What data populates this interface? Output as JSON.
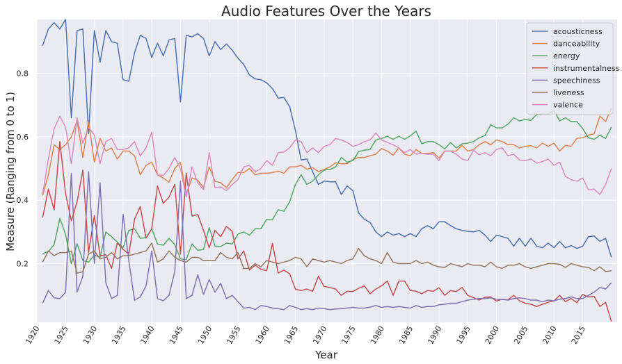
{
  "chart_data": {
    "type": "line",
    "title": "Audio Features Over the Years",
    "xlabel": "Year",
    "ylabel": "Measure (Ranging from 0 to 1)",
    "xlim": [
      1920,
      2021
    ],
    "ylim": [
      0.015,
      0.97
    ],
    "x_ticks": [
      1920,
      1925,
      1930,
      1935,
      1940,
      1945,
      1950,
      1955,
      1960,
      1965,
      1970,
      1975,
      1980,
      1985,
      1990,
      1995,
      2000,
      2005,
      2010,
      2015
    ],
    "y_ticks": [
      0.2,
      0.4,
      0.6,
      0.8
    ],
    "grid": true,
    "legend_position": "top-right",
    "x": [
      1921,
      1922,
      1923,
      1924,
      1925,
      1926,
      1927,
      1928,
      1929,
      1930,
      1931,
      1932,
      1933,
      1934,
      1935,
      1936,
      1937,
      1938,
      1939,
      1940,
      1941,
      1942,
      1943,
      1944,
      1945,
      1946,
      1947,
      1948,
      1949,
      1950,
      1951,
      1952,
      1953,
      1954,
      1955,
      1956,
      1957,
      1958,
      1959,
      1960,
      1961,
      1962,
      1963,
      1964,
      1965,
      1966,
      1967,
      1968,
      1969,
      1970,
      1971,
      1972,
      1973,
      1974,
      1975,
      1976,
      1977,
      1978,
      1979,
      1980,
      1981,
      1982,
      1983,
      1984,
      1985,
      1986,
      1987,
      1988,
      1989,
      1990,
      1991,
      1992,
      1993,
      1994,
      1995,
      1996,
      1997,
      1998,
      1999,
      2000,
      2001,
      2002,
      2003,
      2004,
      2005,
      2006,
      2007,
      2008,
      2009,
      2010,
      2011,
      2012,
      2013,
      2014,
      2015,
      2016,
      2017,
      2018,
      2019,
      2020
    ],
    "series": [
      {
        "name": "acousticness",
        "color": "#4c72b0",
        "values": [
          0.887,
          0.94,
          0.96,
          0.94,
          0.97,
          0.66,
          0.935,
          0.94,
          0.61,
          0.935,
          0.835,
          0.935,
          0.9,
          0.895,
          0.78,
          0.775,
          0.865,
          0.92,
          0.91,
          0.85,
          0.895,
          0.855,
          0.905,
          0.91,
          0.71,
          0.92,
          0.915,
          0.925,
          0.91,
          0.855,
          0.9,
          0.875,
          0.893,
          0.873,
          0.848,
          0.828,
          0.795,
          0.782,
          0.78,
          0.77,
          0.752,
          0.722,
          0.724,
          0.695,
          0.62,
          0.527,
          0.53,
          0.49,
          0.45,
          0.46,
          0.458,
          0.458,
          0.418,
          0.445,
          0.43,
          0.36,
          0.34,
          0.33,
          0.3,
          0.285,
          0.3,
          0.29,
          0.295,
          0.285,
          0.295,
          0.285,
          0.31,
          0.32,
          0.31,
          0.332,
          0.332,
          0.32,
          0.31,
          0.305,
          0.302,
          0.3,
          0.305,
          0.29,
          0.27,
          0.29,
          0.285,
          0.28,
          0.255,
          0.28,
          0.255,
          0.28,
          0.255,
          0.25,
          0.265,
          0.25,
          0.27,
          0.25,
          0.257,
          0.248,
          0.255,
          0.285,
          0.287,
          0.27,
          0.28,
          0.22
        ]
      },
      {
        "name": "danceability",
        "color": "#dd8452",
        "values": [
          0.415,
          0.48,
          0.575,
          0.56,
          0.575,
          0.6,
          0.65,
          0.535,
          0.65,
          0.52,
          0.595,
          0.555,
          0.565,
          0.53,
          0.555,
          0.555,
          0.54,
          0.48,
          0.51,
          0.52,
          0.48,
          0.47,
          0.457,
          0.5,
          0.52,
          0.42,
          0.47,
          0.463,
          0.44,
          0.505,
          0.46,
          0.455,
          0.44,
          0.465,
          0.488,
          0.487,
          0.5,
          0.48,
          0.485,
          0.485,
          0.487,
          0.492,
          0.485,
          0.505,
          0.505,
          0.51,
          0.498,
          0.503,
          0.49,
          0.497,
          0.505,
          0.518,
          0.515,
          0.515,
          0.528,
          0.535,
          0.535,
          0.54,
          0.545,
          0.563,
          0.555,
          0.542,
          0.565,
          0.545,
          0.54,
          0.56,
          0.548,
          0.548,
          0.55,
          0.533,
          0.555,
          0.555,
          0.555,
          0.573,
          0.555,
          0.56,
          0.575,
          0.585,
          0.575,
          0.59,
          0.585,
          0.575,
          0.575,
          0.565,
          0.57,
          0.572,
          0.565,
          0.58,
          0.57,
          0.58,
          0.555,
          0.573,
          0.57,
          0.595,
          0.597,
          0.605,
          0.61,
          0.665,
          0.648,
          0.69
        ]
      },
      {
        "name": "energy",
        "color": "#55a868",
        "values": [
          0.232,
          0.238,
          0.26,
          0.343,
          0.292,
          0.2,
          0.263,
          0.21,
          0.205,
          0.227,
          0.22,
          0.3,
          0.285,
          0.268,
          0.25,
          0.305,
          0.31,
          0.28,
          0.282,
          0.31,
          0.262,
          0.258,
          0.28,
          0.26,
          0.215,
          0.213,
          0.262,
          0.242,
          0.245,
          0.313,
          0.256,
          0.254,
          0.265,
          0.262,
          0.293,
          0.3,
          0.29,
          0.31,
          0.31,
          0.34,
          0.338,
          0.37,
          0.365,
          0.395,
          0.45,
          0.48,
          0.45,
          0.46,
          0.48,
          0.495,
          0.497,
          0.505,
          0.535,
          0.52,
          0.525,
          0.553,
          0.558,
          0.56,
          0.59,
          0.595,
          0.602,
          0.592,
          0.602,
          0.592,
          0.603,
          0.618,
          0.578,
          0.585,
          0.585,
          0.575,
          0.562,
          0.582,
          0.565,
          0.578,
          0.58,
          0.585,
          0.597,
          0.604,
          0.638,
          0.628,
          0.628,
          0.64,
          0.66,
          0.65,
          0.655,
          0.652,
          0.67,
          0.672,
          0.672,
          0.683,
          0.65,
          0.66,
          0.648,
          0.648,
          0.626,
          0.597,
          0.592,
          0.605,
          0.595,
          0.63
        ]
      },
      {
        "name": "instrumentalness",
        "color": "#c44e52",
        "values": [
          0.345,
          0.435,
          0.37,
          0.585,
          0.42,
          0.335,
          0.395,
          0.495,
          0.235,
          0.352,
          0.225,
          0.228,
          0.185,
          0.265,
          0.245,
          0.23,
          0.34,
          0.38,
          0.28,
          0.31,
          0.445,
          0.39,
          0.41,
          0.45,
          0.23,
          0.485,
          0.35,
          0.355,
          0.305,
          0.25,
          0.305,
          0.285,
          0.317,
          0.302,
          0.215,
          0.24,
          0.18,
          0.195,
          0.182,
          0.178,
          0.264,
          0.17,
          0.18,
          0.168,
          0.12,
          0.115,
          0.12,
          0.113,
          0.16,
          0.128,
          0.125,
          0.12,
          0.1,
          0.113,
          0.112,
          0.122,
          0.13,
          0.105,
          0.12,
          0.13,
          0.145,
          0.1,
          0.145,
          0.145,
          0.115,
          0.113,
          0.105,
          0.115,
          0.113,
          0.124,
          0.1,
          0.115,
          0.112,
          0.125,
          0.1,
          0.093,
          0.085,
          0.094,
          0.095,
          0.082,
          0.088,
          0.086,
          0.1,
          0.083,
          0.075,
          0.072,
          0.065,
          0.072,
          0.078,
          0.083,
          0.1,
          0.08,
          0.09,
          0.077,
          0.103,
          0.095,
          0.097,
          0.065,
          0.078,
          0.018
        ]
      },
      {
        "name": "speechiness",
        "color": "#8172b3",
        "values": [
          0.075,
          0.115,
          0.092,
          0.09,
          0.11,
          0.485,
          0.11,
          0.16,
          0.49,
          0.2,
          0.455,
          0.14,
          0.09,
          0.1,
          0.355,
          0.21,
          0.085,
          0.095,
          0.13,
          0.24,
          0.09,
          0.083,
          0.1,
          0.175,
          0.46,
          0.09,
          0.1,
          0.165,
          0.103,
          0.15,
          0.11,
          0.138,
          0.09,
          0.1,
          0.08,
          0.06,
          0.062,
          0.055,
          0.068,
          0.065,
          0.06,
          0.058,
          0.055,
          0.068,
          0.062,
          0.055,
          0.058,
          0.055,
          0.06,
          0.058,
          0.055,
          0.057,
          0.058,
          0.06,
          0.062,
          0.06,
          0.06,
          0.063,
          0.068,
          0.062,
          0.065,
          0.062,
          0.065,
          0.062,
          0.06,
          0.068,
          0.062,
          0.065,
          0.065,
          0.07,
          0.072,
          0.075,
          0.075,
          0.08,
          0.085,
          0.088,
          0.09,
          0.09,
          0.092,
          0.088,
          0.087,
          0.085,
          0.09,
          0.092,
          0.09,
          0.085,
          0.085,
          0.08,
          0.085,
          0.083,
          0.088,
          0.09,
          0.095,
          0.09,
          0.09,
          0.1,
          0.11,
          0.125,
          0.12,
          0.14
        ]
      },
      {
        "name": "liveness",
        "color": "#937860",
        "values": [
          0.205,
          0.24,
          0.225,
          0.235,
          0.235,
          0.24,
          0.17,
          0.175,
          0.23,
          0.24,
          0.215,
          0.22,
          0.235,
          0.215,
          0.225,
          0.225,
          0.23,
          0.235,
          0.24,
          0.265,
          0.205,
          0.215,
          0.24,
          0.22,
          0.21,
          0.205,
          0.22,
          0.22,
          0.21,
          0.21,
          0.21,
          0.235,
          0.22,
          0.215,
          0.235,
          0.185,
          0.185,
          0.2,
          0.19,
          0.21,
          0.205,
          0.2,
          0.205,
          0.21,
          0.22,
          0.215,
          0.19,
          0.215,
          0.21,
          0.205,
          0.21,
          0.205,
          0.2,
          0.21,
          0.215,
          0.248,
          0.225,
          0.215,
          0.21,
          0.2,
          0.235,
          0.205,
          0.2,
          0.2,
          0.2,
          0.21,
          0.2,
          0.205,
          0.195,
          0.19,
          0.188,
          0.2,
          0.195,
          0.19,
          0.2,
          0.195,
          0.195,
          0.19,
          0.205,
          0.19,
          0.185,
          0.195,
          0.195,
          0.2,
          0.19,
          0.185,
          0.19,
          0.195,
          0.2,
          0.2,
          0.198,
          0.188,
          0.2,
          0.195,
          0.19,
          0.188,
          0.178,
          0.19,
          0.175,
          0.178
        ]
      },
      {
        "name": "valence",
        "color": "#da8bc3",
        "values": [
          0.42,
          0.53,
          0.625,
          0.665,
          0.63,
          0.515,
          0.66,
          0.58,
          0.63,
          0.605,
          0.515,
          0.585,
          0.595,
          0.56,
          0.56,
          0.565,
          0.585,
          0.54,
          0.565,
          0.615,
          0.48,
          0.478,
          0.5,
          0.535,
          0.5,
          0.41,
          0.505,
          0.455,
          0.433,
          0.55,
          0.44,
          0.442,
          0.43,
          0.45,
          0.465,
          0.505,
          0.51,
          0.49,
          0.5,
          0.525,
          0.51,
          0.55,
          0.552,
          0.565,
          0.59,
          0.585,
          0.55,
          0.565,
          0.55,
          0.57,
          0.575,
          0.595,
          0.59,
          0.582,
          0.57,
          0.575,
          0.585,
          0.59,
          0.612,
          0.59,
          0.582,
          0.575,
          0.565,
          0.55,
          0.56,
          0.545,
          0.548,
          0.545,
          0.545,
          0.525,
          0.555,
          0.555,
          0.545,
          0.53,
          0.525,
          0.558,
          0.543,
          0.55,
          0.54,
          0.56,
          0.565,
          0.54,
          0.545,
          0.527,
          0.525,
          0.53,
          0.517,
          0.522,
          0.53,
          0.51,
          0.52,
          0.475,
          0.465,
          0.46,
          0.47,
          0.433,
          0.435,
          0.418,
          0.45,
          0.5
        ]
      }
    ]
  }
}
